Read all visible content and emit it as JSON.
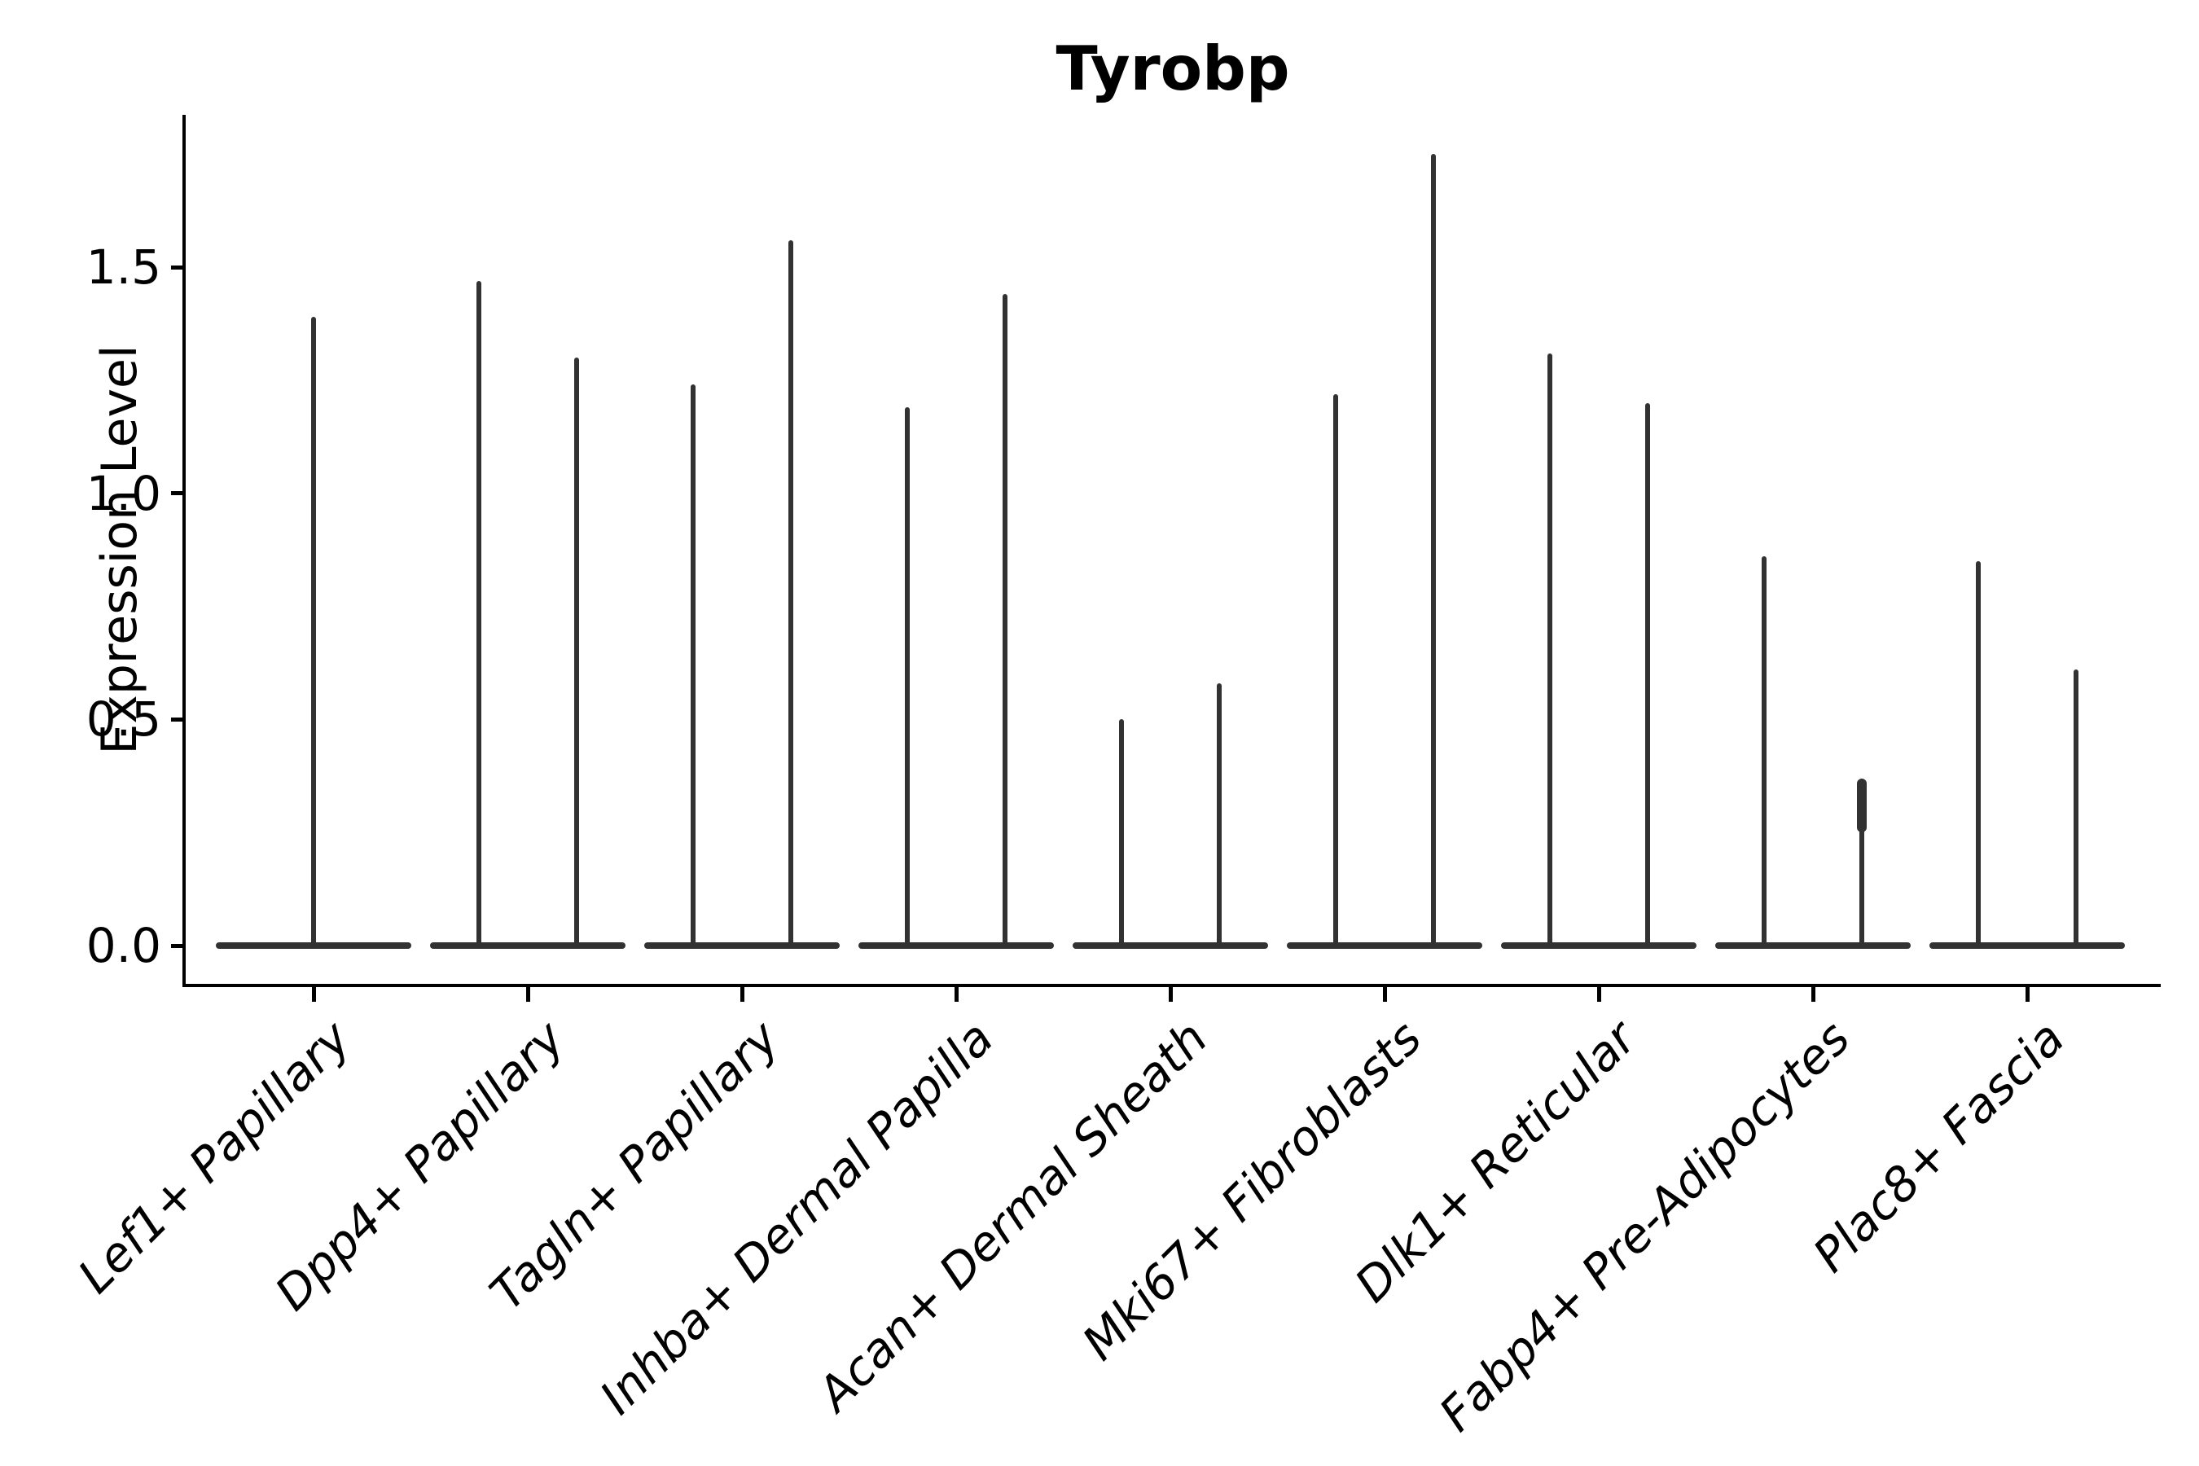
{
  "title": "Tyrobp",
  "ylabel": "Expression Level",
  "chart_data": {
    "type": "violin",
    "title": "Tyrobp",
    "xlabel": "",
    "ylabel": "Expression Level",
    "ylim": [
      -0.09,
      1.84
    ],
    "yticks": [
      0.0,
      0.5,
      1.0,
      1.5
    ],
    "ytick_labels": [
      "0.0",
      "0.5",
      "1.0",
      "1.5"
    ],
    "grid": false,
    "legend": false,
    "categories": [
      "Lef1+ Papillary",
      "Dpp4+ Papillary",
      "Tagln+ Papillary",
      "Inhba+ Dermal Papilla",
      "Acan+ Dermal Sheath",
      "Mki67+ Fibroblasts",
      "Dlk1+ Reticular",
      "Fabp4+ Pre-Adipocytes",
      "Plac8+ Fascia"
    ],
    "series": [
      {
        "category": "Lef1+ Papillary",
        "violins": [
          {
            "position": "full",
            "max": 1.39
          }
        ]
      },
      {
        "category": "Dpp4+ Papillary",
        "violins": [
          {
            "position": "left",
            "max": 1.47
          },
          {
            "position": "right",
            "max": 1.3
          }
        ]
      },
      {
        "category": "Tagln+ Papillary",
        "violins": [
          {
            "position": "left",
            "max": 1.24
          },
          {
            "position": "right",
            "max": 1.56
          }
        ]
      },
      {
        "category": "Inhba+ Dermal Papilla",
        "violins": [
          {
            "position": "left",
            "max": 1.19
          },
          {
            "position": "right",
            "max": 1.44
          }
        ]
      },
      {
        "category": "Acan+ Dermal Sheath",
        "violins": [
          {
            "position": "left",
            "max": 0.5
          },
          {
            "position": "right",
            "max": 0.58
          }
        ]
      },
      {
        "category": "Mki67+ Fibroblasts",
        "violins": [
          {
            "position": "left",
            "max": 1.22
          },
          {
            "position": "right",
            "max": 1.75
          }
        ]
      },
      {
        "category": "Dlk1+ Reticular",
        "violins": [
          {
            "position": "left",
            "max": 1.31
          },
          {
            "position": "right",
            "max": 1.2
          }
        ]
      },
      {
        "category": "Fabp4+ Pre-Adipocytes",
        "violins": [
          {
            "position": "left",
            "max": 0.86
          },
          {
            "position": "right",
            "max": 0.37,
            "bulge": {
              "from": 0.25,
              "to": 0.37
            }
          }
        ]
      },
      {
        "category": "Plac8+ Fascia",
        "violins": [
          {
            "position": "left",
            "max": 0.85
          },
          {
            "position": "right",
            "max": 0.61
          }
        ]
      }
    ],
    "style": {
      "violin_color": "#323232",
      "axis_color": "#000000",
      "background": "#ffffff",
      "xtick_label_style": "italic",
      "title_weight": "bold"
    },
    "baseline_value": 0.0
  }
}
